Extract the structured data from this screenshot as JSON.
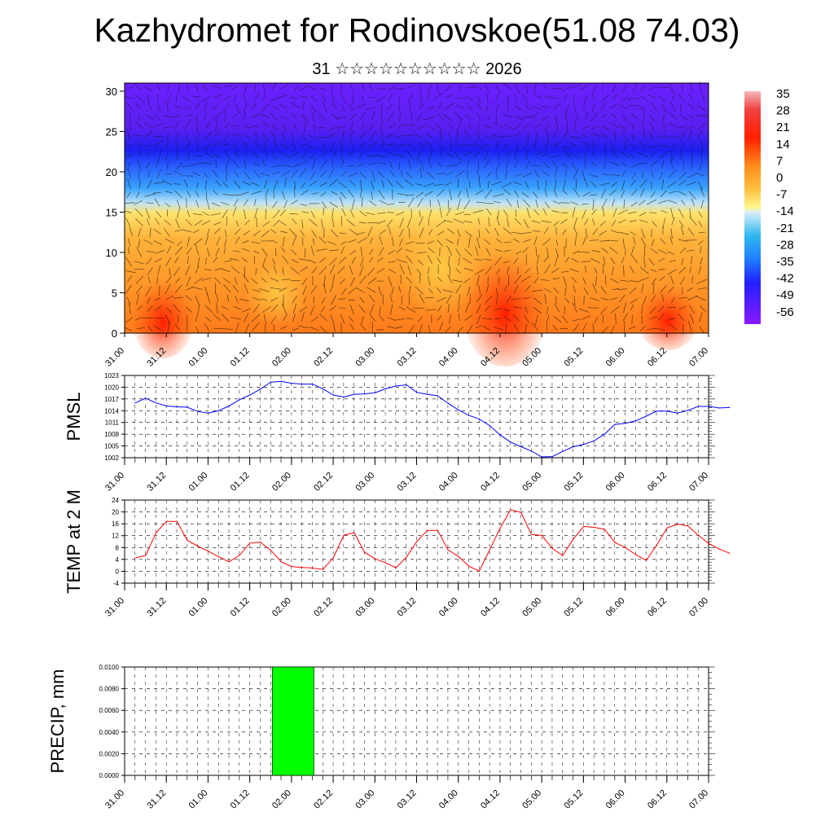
{
  "title": "Kazhydromet for Rodinovskoe(51.08 74.03)",
  "subtitle": "31 ☆☆☆☆☆☆☆☆☆☆ 2026",
  "colors": {
    "pmsl_line": "#0000ff",
    "temp_line": "#ff0000",
    "precip_bar": "#00ff00",
    "grid": "#000000"
  },
  "chart_data": [
    {
      "id": "upper-air",
      "type": "heatmap",
      "title": "",
      "xlabel": "",
      "ylabel": "",
      "ylim": [
        0,
        31
      ],
      "yticks": [
        0,
        5,
        10,
        15,
        20,
        25,
        30
      ],
      "x_tick_labels": [
        "31.00",
        "31.12",
        "01.00",
        "01.12",
        "02.00",
        "02.12",
        "03.00",
        "03.12",
        "04.00",
        "04.12",
        "05.00",
        "05.12",
        "06.00",
        "06.12",
        "07.00"
      ],
      "colorbar_labels": [
        "35",
        "28",
        "21",
        "14",
        "7",
        "0",
        "-7",
        "-14",
        "-21",
        "-28",
        "-35",
        "-42",
        "-49",
        "-56"
      ],
      "field": "temperature (°C) with wind streamlines"
    },
    {
      "id": "pmsl",
      "type": "line",
      "ylabel": "PMSL",
      "ylim": [
        1002,
        1023
      ],
      "yticks": [
        1002,
        1005,
        1008,
        1011,
        1014,
        1017,
        1020,
        1023
      ],
      "x_tick_labels": [
        "31.00",
        "31.12",
        "01.00",
        "01.12",
        "02.00",
        "02.12",
        "03.00",
        "03.12",
        "04.00",
        "04.12",
        "05.00",
        "05.12",
        "06.00",
        "06.12",
        "07.00"
      ],
      "x_step_hours": 3,
      "values": [
        1016.0,
        1017.2,
        1016.0,
        1015.2,
        1015.0,
        1014.9,
        1013.8,
        1013.4,
        1014.0,
        1015.2,
        1016.8,
        1018.0,
        1019.5,
        1021.3,
        1021.5,
        1021.0,
        1020.8,
        1020.8,
        1019.6,
        1018.0,
        1017.5,
        1018.2,
        1018.3,
        1018.6,
        1019.6,
        1020.3,
        1020.6,
        1018.7,
        1018.2,
        1017.8,
        1015.9,
        1014.2,
        1012.8,
        1011.9,
        1010.2,
        1007.8,
        1006.0,
        1004.8,
        1003.7,
        1002.2,
        1002.3,
        1003.6,
        1004.8,
        1005.4,
        1006.3,
        1008.0,
        1010.5,
        1010.8,
        1011.4,
        1012.6,
        1013.9,
        1013.9,
        1013.4,
        1014.1,
        1015.1,
        1015.1,
        1014.7,
        1014.8
      ]
    },
    {
      "id": "temp2m",
      "type": "line",
      "ylabel": "TEMP at 2 M",
      "ylim": [
        -4,
        24
      ],
      "yticks": [
        -4,
        0,
        4,
        8,
        12,
        16,
        20,
        24
      ],
      "x_tick_labels": [
        "31.00",
        "31.12",
        "01.00",
        "01.12",
        "02.00",
        "02.12",
        "03.00",
        "03.12",
        "04.00",
        "04.12",
        "05.00",
        "05.12",
        "06.00",
        "06.12",
        "07.00"
      ],
      "x_step_hours": 3,
      "values": [
        4.5,
        5.3,
        13.0,
        16.8,
        16.8,
        10.4,
        8.5,
        6.8,
        4.9,
        3.2,
        5.4,
        9.5,
        9.8,
        7.1,
        3.2,
        1.6,
        1.3,
        1.1,
        0.6,
        4.6,
        12.2,
        13.0,
        6.4,
        4.2,
        2.9,
        1.2,
        4.7,
        10.0,
        13.8,
        13.8,
        7.2,
        5.0,
        1.7,
        0.1,
        7.3,
        14.5,
        20.8,
        19.8,
        12.4,
        12.1,
        7.7,
        5.3,
        10.8,
        15.1,
        14.8,
        14.2,
        9.7,
        8.0,
        5.6,
        3.7,
        8.8,
        14.6,
        15.9,
        15.3,
        12.2,
        9.3,
        7.5,
        6.1
      ]
    },
    {
      "id": "precip",
      "type": "bar",
      "ylabel": "PRECIP, mm",
      "ylim": [
        0,
        0.01
      ],
      "ytick_labels": [
        "0.0000",
        "0.0020",
        "0.0040",
        "0.0060",
        "0.0080",
        "0.0100"
      ],
      "x_tick_labels": [
        "31.00",
        "31.12",
        "01.00",
        "01.12",
        "02.00",
        "02.12",
        "03.00",
        "03.12",
        "04.00",
        "04.12",
        "05.00",
        "05.12",
        "06.00",
        "06.12",
        "07.00"
      ],
      "x_step_hours": 3,
      "bars": [
        {
          "start_hour": 42,
          "end_hour": 54,
          "value": 0.01
        }
      ]
    }
  ]
}
